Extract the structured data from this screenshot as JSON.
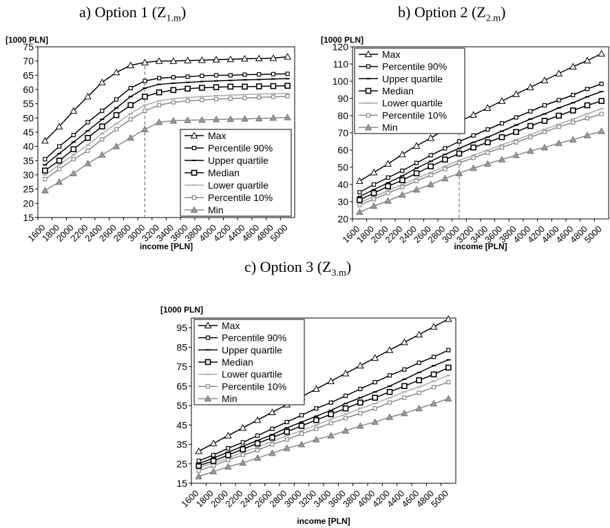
{
  "panel_titles": [
    {
      "text": "a) Option 1 (Z",
      "sub": "1.m",
      "close": ")"
    },
    {
      "text": "b) Option 2 (Z",
      "sub": "2.m",
      "close": ")"
    },
    {
      "text": "c) Option 3 (Z",
      "sub": "3.m",
      "close": ")"
    }
  ],
  "colors": {
    "dark": "#000000",
    "gray": "#888888",
    "light_gray": "#aaaaaa"
  },
  "chart_data": [
    {
      "type": "line",
      "ylabel": "[1000 PLN]",
      "xlabel": "income [PLN]",
      "ylim": [
        15,
        75
      ],
      "yticks": [
        15,
        20,
        25,
        30,
        35,
        40,
        45,
        50,
        55,
        60,
        65,
        70,
        75
      ],
      "x_tick_labels": [
        "1600",
        "1800",
        "2000",
        "2200",
        "2400",
        "2600",
        "2800",
        "3000",
        "3200",
        "3400",
        "3600",
        "3800",
        "4000",
        "4200",
        "4400",
        "4600",
        "4800",
        "5000"
      ],
      "x": [
        1700,
        1900,
        2100,
        2300,
        2500,
        2700,
        2900,
        3100,
        3300,
        3500,
        3700,
        3900,
        4100,
        4300,
        4500,
        4700,
        4900,
        5100
      ],
      "vline_x": 3100,
      "legend_position": "bottom-right",
      "series": [
        {
          "name": "Max",
          "marker": "triangle",
          "color": "#000000",
          "values": [
            42,
            47,
            52.5,
            57.5,
            62.5,
            66,
            68.5,
            69.5,
            70,
            70,
            70.2,
            70.3,
            70.5,
            70.6,
            70.8,
            70.9,
            71,
            71.5
          ]
        },
        {
          "name": "Percentile 90%",
          "marker": "square-small",
          "color": "#000000",
          "values": [
            35.5,
            40,
            44,
            48.5,
            52.5,
            56.5,
            60.5,
            63,
            64,
            64.3,
            64.5,
            64.8,
            65,
            65,
            65.2,
            65.3,
            65.4,
            65.5
          ]
        },
        {
          "name": "Upper quartile",
          "marker": "dash",
          "color": "#000000",
          "values": [
            33.5,
            37.5,
            41.5,
            45.5,
            49.5,
            53.5,
            57.5,
            60.5,
            61.8,
            62.2,
            62.5,
            62.8,
            63,
            63.2,
            63.4,
            63.5,
            63.7,
            63.8
          ]
        },
        {
          "name": "Median",
          "marker": "square",
          "color": "#000000",
          "values": [
            31.5,
            35,
            39,
            43,
            47,
            51,
            54.5,
            57.5,
            59,
            59.8,
            60.3,
            60.6,
            60.8,
            61,
            61,
            61.1,
            61.2,
            61.3
          ]
        },
        {
          "name": "Lower quartile",
          "marker": "dash",
          "color": "#aaaaaa",
          "values": [
            30,
            33.5,
            37,
            40.5,
            44.5,
            48,
            51.5,
            54.5,
            56,
            56.8,
            57.2,
            57.5,
            57.8,
            58,
            58.2,
            58.4,
            58.5,
            58.6
          ]
        },
        {
          "name": "Percentile 10%",
          "marker": "square-small",
          "color": "#888888",
          "values": [
            28.5,
            32,
            35.5,
            38.5,
            42.5,
            46,
            49.5,
            52.5,
            54.5,
            55.5,
            56,
            56.3,
            56.6,
            56.8,
            57,
            57.2,
            57.4,
            57.6
          ]
        },
        {
          "name": "Min",
          "marker": "triangle-filled",
          "color": "#888888",
          "values": [
            24.5,
            27.5,
            30.5,
            34,
            37,
            40,
            43,
            46,
            48.5,
            49,
            49.2,
            49.3,
            49.5,
            49.6,
            49.7,
            49.8,
            50,
            50.2
          ]
        }
      ]
    },
    {
      "type": "line",
      "ylabel": "[1000 PLN]",
      "xlabel": "income [PLN]",
      "ylim": [
        20,
        120
      ],
      "yticks": [
        20,
        30,
        40,
        50,
        60,
        70,
        80,
        90,
        100,
        110,
        120
      ],
      "x_tick_labels": [
        "1600",
        "1800",
        "2000",
        "2200",
        "2400",
        "2600",
        "2800",
        "3000",
        "3200",
        "3400",
        "3600",
        "3800",
        "4000",
        "4200",
        "4400",
        "4600",
        "4800",
        "5000"
      ],
      "x": [
        1700,
        1900,
        2100,
        2300,
        2500,
        2700,
        2900,
        3100,
        3300,
        3500,
        3700,
        3900,
        4100,
        4300,
        4500,
        4700,
        4900,
        5100
      ],
      "vline_x": 3100,
      "legend_position": "top-left",
      "series": [
        {
          "name": "Max",
          "marker": "triangle",
          "color": "#000000",
          "values": [
            42,
            47,
            52,
            57.5,
            62.5,
            67,
            72,
            76.5,
            80.5,
            84.5,
            88.5,
            92.5,
            96.5,
            100.5,
            104.5,
            108.5,
            112,
            116
          ]
        },
        {
          "name": "Percentile 90%",
          "marker": "square-small",
          "color": "#000000",
          "values": [
            35.5,
            40,
            44,
            48,
            52.5,
            57,
            61,
            65,
            68.5,
            72,
            75.5,
            79,
            82.5,
            86,
            89,
            92,
            95.5,
            98.5
          ]
        },
        {
          "name": "Upper quartile",
          "marker": "dash",
          "color": "#000000",
          "values": [
            33,
            37,
            41,
            45,
            49.5,
            53.5,
            57.5,
            61,
            64.5,
            67.5,
            71,
            74.5,
            78,
            81,
            84.5,
            87.5,
            91,
            94
          ]
        },
        {
          "name": "Median",
          "marker": "square",
          "color": "#000000",
          "values": [
            31,
            35,
            39,
            42.5,
            46.5,
            50.5,
            54.5,
            58,
            61.5,
            64.5,
            67.5,
            70.5,
            74,
            77,
            80,
            83,
            86,
            88.5
          ]
        },
        {
          "name": "Lower quartile",
          "marker": "dash",
          "color": "#aaaaaa",
          "values": [
            29.5,
            33,
            36.5,
            40,
            43.5,
            47,
            50.5,
            54,
            57,
            60,
            63,
            66,
            69,
            72,
            75,
            78,
            81,
            84
          ]
        },
        {
          "name": "Percentile 10%",
          "marker": "square-small",
          "color": "#888888",
          "values": [
            28,
            31.5,
            35,
            38.5,
            42,
            45.5,
            49,
            52.5,
            55.5,
            58.5,
            61.5,
            64.5,
            67.5,
            70.5,
            73.5,
            76,
            78.5,
            81
          ]
        },
        {
          "name": "Min",
          "marker": "triangle-filled",
          "color": "#888888",
          "values": [
            24,
            27.5,
            30.5,
            34,
            37,
            40,
            43.5,
            46.5,
            49.5,
            52,
            54.5,
            57,
            59.5,
            61.5,
            64,
            66,
            68.5,
            71
          ]
        }
      ]
    },
    {
      "type": "line",
      "ylabel": "[1000 PLN]",
      "xlabel": "income [PLN]",
      "ylim": [
        15,
        100
      ],
      "yticks": [
        15,
        25,
        35,
        45,
        55,
        65,
        75,
        85,
        95
      ],
      "x_tick_labels": [
        "1600",
        "1800",
        "2000",
        "2200",
        "2400",
        "2600",
        "2800",
        "3000",
        "3200",
        "3400",
        "3600",
        "3800",
        "4000",
        "4200",
        "4400",
        "4600",
        "4800",
        "5000"
      ],
      "x": [
        1700,
        1900,
        2100,
        2300,
        2500,
        2700,
        2900,
        3100,
        3300,
        3500,
        3700,
        3900,
        4100,
        4300,
        4500,
        4700,
        4900,
        5100
      ],
      "vline_x": null,
      "legend_position": "top-left",
      "series": [
        {
          "name": "Max",
          "marker": "triangle",
          "color": "#000000",
          "values": [
            31.5,
            35.5,
            39.5,
            43.5,
            47.5,
            51.5,
            55.5,
            59.5,
            63.5,
            67.5,
            71.5,
            75.5,
            79.5,
            83.5,
            87.5,
            91.5,
            95.5,
            99.5
          ]
        },
        {
          "name": "Percentile 90%",
          "marker": "square-small",
          "color": "#000000",
          "values": [
            26.5,
            29.5,
            33,
            36,
            39.5,
            43,
            46.5,
            50,
            53.5,
            56.5,
            60,
            63.5,
            67,
            70.5,
            73.5,
            77,
            80,
            83.5
          ]
        },
        {
          "name": "Upper quartile",
          "marker": "dash",
          "color": "#000000",
          "values": [
            25,
            28,
            31,
            34,
            37,
            40,
            43.5,
            46.5,
            49.5,
            52.5,
            56,
            59,
            62,
            65,
            68.5,
            72,
            75.5,
            78.5
          ]
        },
        {
          "name": "Median",
          "marker": "square",
          "color": "#000000",
          "values": [
            24,
            26.5,
            29.5,
            32.5,
            35.5,
            38.5,
            41.5,
            44.5,
            47.5,
            50.5,
            53.5,
            56.5,
            59,
            62,
            65,
            68,
            71,
            74.5
          ]
        },
        {
          "name": "Lower quartile",
          "marker": "dash",
          "color": "#aaaaaa",
          "values": [
            23,
            25.5,
            28,
            31,
            33.5,
            36.5,
            39.5,
            42,
            45,
            48,
            50.5,
            53.5,
            56,
            59,
            62,
            64.5,
            67.5,
            70.5
          ]
        },
        {
          "name": "Percentile 10%",
          "marker": "square-small",
          "color": "#888888",
          "values": [
            21.5,
            24,
            27,
            29.5,
            32,
            35,
            37.5,
            40.5,
            43,
            46,
            48.5,
            51,
            53.5,
            56.5,
            59,
            61.5,
            64.5,
            67
          ]
        },
        {
          "name": "Min",
          "marker": "triangle-filled",
          "color": "#888888",
          "values": [
            18.5,
            21,
            23.5,
            25.5,
            28,
            30.5,
            33,
            35,
            37.5,
            39.5,
            42,
            44.5,
            46.5,
            49,
            51,
            53.5,
            56,
            58.5
          ]
        }
      ]
    }
  ]
}
